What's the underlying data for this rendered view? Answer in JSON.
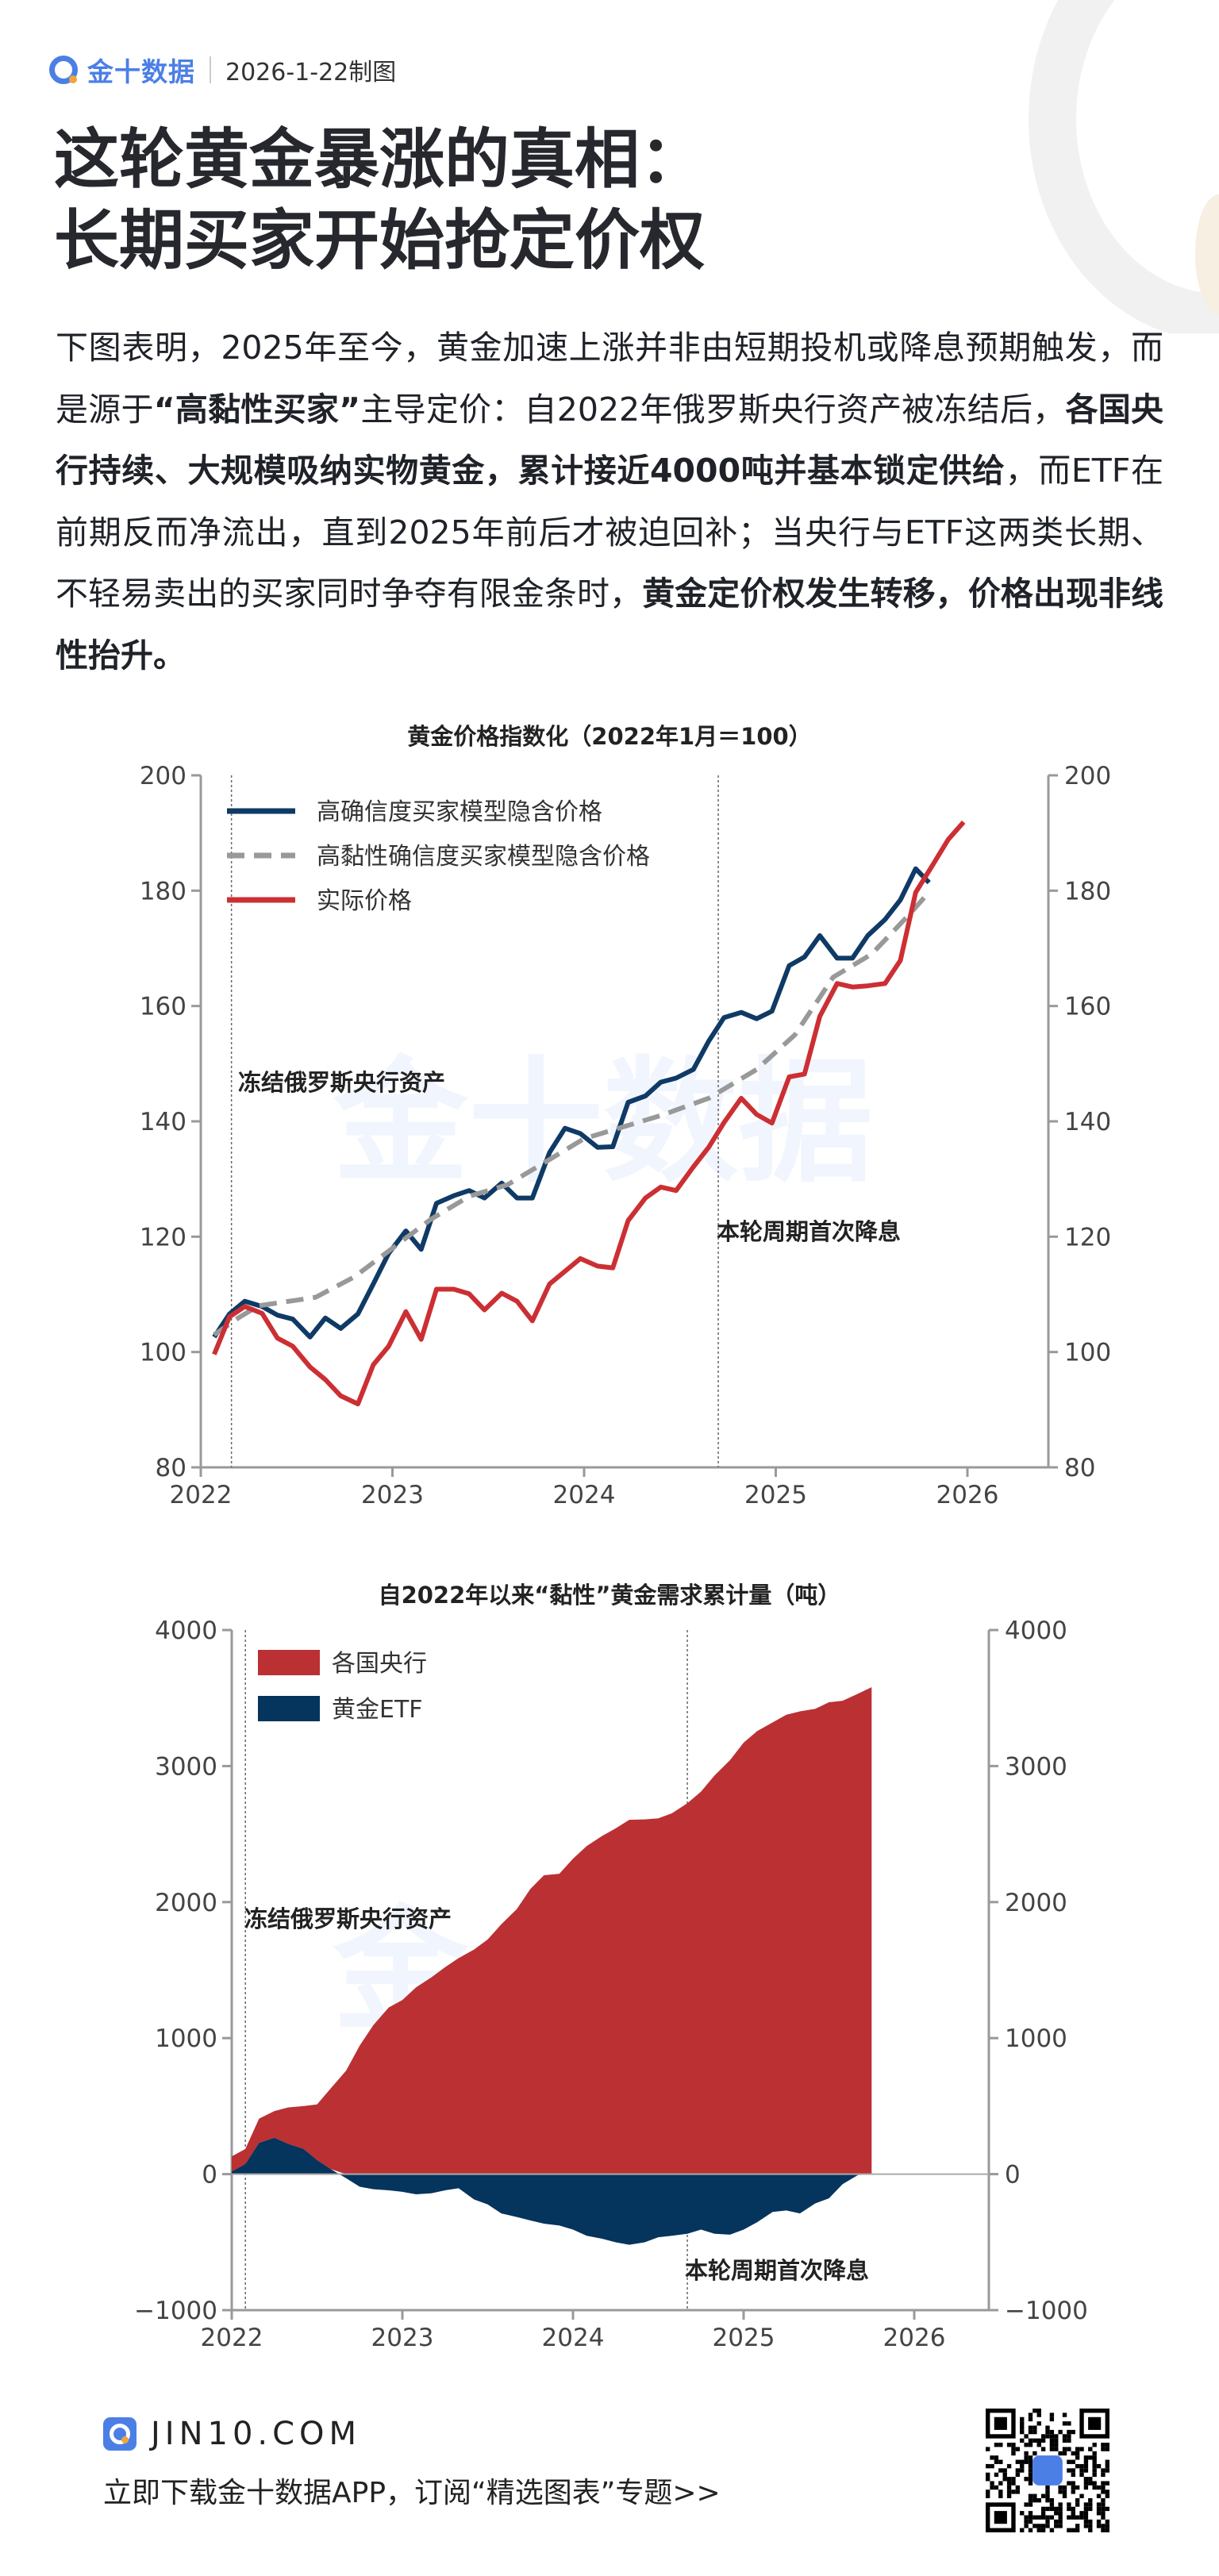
{
  "header": {
    "brand": "金十数据",
    "date": "2026-1-22制图",
    "title_lines": [
      "这轮黄金暴涨的真相：",
      "长期买家开始抢定价权"
    ]
  },
  "body": {
    "segments": [
      {
        "text": "下图表明，2025年至今，黄金加速上涨并非由短期投机或降息预期触发，而是源于",
        "bold": false
      },
      {
        "text": "“高黏性买家”",
        "bold": true
      },
      {
        "text": "主导定价：自2022年俄罗斯央行资产被冻结后，",
        "bold": false
      },
      {
        "text": "各国央行持续、大规模吸纳实物黄金，累计接近4000吨并基本锁定供给",
        "bold": true
      },
      {
        "text": "，而ETF在前期反而净流出，直到2025年前后才被迫回补；当央行与ETF这两类长期、不轻易卖出的买家同时争夺有限金条时，",
        "bold": false
      },
      {
        "text": "黄金定价权发生转移，价格出现非线性抬升。",
        "bold": true
      }
    ]
  },
  "watermark": "金十数据",
  "chart_data": [
    {
      "type": "line",
      "title": "黄金价格指数化（2022年1月＝100）",
      "xlim": [
        2022,
        2026.4
      ],
      "ylim": [
        80,
        200
      ],
      "x_ticks": [
        "2022",
        "2023",
        "2024",
        "2025",
        "2026"
      ],
      "y_ticks": [
        80,
        100,
        120,
        140,
        160,
        180,
        200
      ],
      "right_axis_mirror": true,
      "grid": false,
      "legend_position": "top-left",
      "colors": {
        "blue": "#0f3a66",
        "gray": "#999999",
        "red": "#cc2f33"
      },
      "annotations": [
        {
          "text": "冻结俄罗斯央行资产",
          "x": 2022.16
        },
        {
          "text": "本轮周期首次降息",
          "x": 2024.7
        }
      ],
      "series": [
        {
          "name": "高确信度买家模型隐含价格",
          "style": "solid",
          "color": "#0f3a66",
          "x": [
            2022.07,
            2022.15,
            2022.23,
            2022.32,
            2022.4,
            2022.48,
            2022.57,
            2022.65,
            2022.73,
            2022.82,
            2022.9,
            2022.98,
            2023.07,
            2023.15,
            2023.23,
            2023.32,
            2023.4,
            2023.48,
            2023.57,
            2023.65,
            2023.73,
            2023.82,
            2023.9,
            2023.98,
            2024.07,
            2024.15,
            2024.23,
            2024.32,
            2024.4,
            2024.48,
            2024.57,
            2024.65,
            2024.73,
            2024.82,
            2024.9,
            2024.98,
            2025.07,
            2025.15,
            2025.23,
            2025.32,
            2025.4,
            2025.48,
            2025.57,
            2025.65,
            2025.73,
            2025.8
          ],
          "y": [
            102.6,
            106.6,
            108.8,
            107.9,
            106.4,
            105.7,
            102.6,
            105.9,
            104.1,
            106.6,
            111.8,
            117.1,
            121,
            117.8,
            125.8,
            127.1,
            128,
            126.7,
            129.3,
            126.7,
            126.7,
            134.6,
            138.8,
            137.9,
            135.5,
            135.6,
            143.3,
            144.4,
            146.8,
            147.5,
            149,
            153.9,
            158,
            158.9,
            157.8,
            159.1,
            167,
            168.5,
            172.2,
            168.3,
            168.3,
            172.2,
            175,
            178.4,
            183.8,
            181.4
          ]
        },
        {
          "name": "高黏性确信度买家模型隐含价格",
          "style": "dashed",
          "color": "#999999",
          "x": [
            2022.07,
            2022.2,
            2022.3,
            2022.5,
            2022.6,
            2022.8,
            2023.0,
            2023.2,
            2023.4,
            2023.6,
            2023.8,
            2024.0,
            2024.2,
            2024.4,
            2024.65,
            2024.9,
            2025.1,
            2025.3,
            2025.5,
            2025.7,
            2025.78
          ],
          "y": [
            103,
            106,
            108,
            109,
            109.5,
            113,
            118,
            123,
            127,
            129,
            133,
            137,
            139,
            141,
            144,
            149,
            155,
            165,
            169,
            176,
            179
          ]
        },
        {
          "name": "实际价格",
          "style": "solid",
          "color": "#cc2f33",
          "x": [
            2022.07,
            2022.15,
            2022.23,
            2022.32,
            2022.4,
            2022.48,
            2022.57,
            2022.65,
            2022.73,
            2022.82,
            2022.9,
            2022.98,
            2023.07,
            2023.15,
            2023.23,
            2023.32,
            2023.4,
            2023.48,
            2023.57,
            2023.65,
            2023.73,
            2023.82,
            2023.9,
            2023.98,
            2024.07,
            2024.15,
            2024.23,
            2024.32,
            2024.4,
            2024.48,
            2024.57,
            2024.65,
            2024.73,
            2024.82,
            2024.9,
            2024.98,
            2025.07,
            2025.15,
            2025.23,
            2025.32,
            2025.4,
            2025.48,
            2025.57,
            2025.65,
            2025.73,
            2025.82,
            2025.9,
            2025.98
          ],
          "y": [
            99.6,
            106.1,
            107.9,
            106.7,
            102.4,
            101,
            97.4,
            95.2,
            92.4,
            91,
            97.8,
            101,
            107,
            102.2,
            110.9,
            110.9,
            110.1,
            107.3,
            110.2,
            108.8,
            105.4,
            111.8,
            114,
            116.2,
            114.9,
            114.6,
            122.8,
            126.7,
            128.6,
            128,
            132.1,
            135.5,
            139.8,
            144,
            141.2,
            139.7,
            147.7,
            148.2,
            158.2,
            163.9,
            163.3,
            163.5,
            163.9,
            167.9,
            179.7,
            184.5,
            188.9,
            191.9
          ]
        }
      ]
    },
    {
      "type": "area",
      "title": "自2022年以来“黏性”黄金需求累计量（吨）",
      "xlim": [
        2022,
        2026.4
      ],
      "ylim": [
        -1000,
        4000
      ],
      "x_ticks": [
        "2022",
        "2023",
        "2024",
        "2025",
        "2026"
      ],
      "y_ticks": [
        -1000,
        0,
        1000,
        2000,
        3000,
        4000
      ],
      "right_axis_mirror": true,
      "grid": false,
      "legend_position": "top-left",
      "stacked": true,
      "annotations": [
        {
          "text": "冻结俄罗斯央行资产",
          "x": 2022.08
        },
        {
          "text": "本轮周期首次降息",
          "x": 2024.67
        }
      ],
      "x": [
        2022.0,
        2022.08,
        2022.16,
        2022.25,
        2022.33,
        2022.42,
        2022.5,
        2022.58,
        2022.67,
        2022.75,
        2022.83,
        2022.92,
        2023.0,
        2023.08,
        2023.17,
        2023.25,
        2023.33,
        2023.42,
        2023.5,
        2023.58,
        2023.67,
        2023.75,
        2023.83,
        2023.92,
        2024.0,
        2024.08,
        2024.17,
        2024.25,
        2024.33,
        2024.42,
        2024.5,
        2024.58,
        2024.67,
        2024.75,
        2024.83,
        2024.92,
        2025.0,
        2025.08,
        2025.17,
        2025.25,
        2025.33,
        2025.42,
        2025.5,
        2025.58,
        2025.67,
        2025.75
      ],
      "series": [
        {
          "name": "各国央行",
          "color": "#bb3033",
          "note_stacked_top": true,
          "values": [
            130,
            185,
            408,
            464,
            490,
            500,
            512,
            630,
            760,
            946,
            1095,
            1225,
            1280,
            1373,
            1447,
            1521,
            1588,
            1651,
            1725,
            1837,
            1948,
            2096,
            2197,
            2208,
            2319,
            2412,
            2486,
            2542,
            2605,
            2608,
            2616,
            2653,
            2727,
            2812,
            2931,
            3043,
            3172,
            3258,
            3321,
            3377,
            3402,
            3421,
            3469,
            3480,
            3532,
            3580
          ]
        },
        {
          "name": "黄金ETF",
          "color": "#05345c",
          "values": [
            19,
            74,
            230,
            267,
            223,
            186,
            104,
            37,
            -30,
            -93,
            -111,
            -119,
            -130,
            -148,
            -141,
            -119,
            -104,
            -186,
            -223,
            -289,
            -315,
            -341,
            -364,
            -378,
            -408,
            -453,
            -475,
            -501,
            -519,
            -501,
            -464,
            -453,
            -438,
            -408,
            -438,
            -445,
            -408,
            -353,
            -278,
            -267,
            -289,
            -215,
            -178,
            -74,
            -7,
            0
          ]
        }
      ]
    }
  ],
  "footer": {
    "site": "JIN10.COM",
    "tagline": "立即下载金十数据APP，订阅“精选图表”专题>>"
  }
}
